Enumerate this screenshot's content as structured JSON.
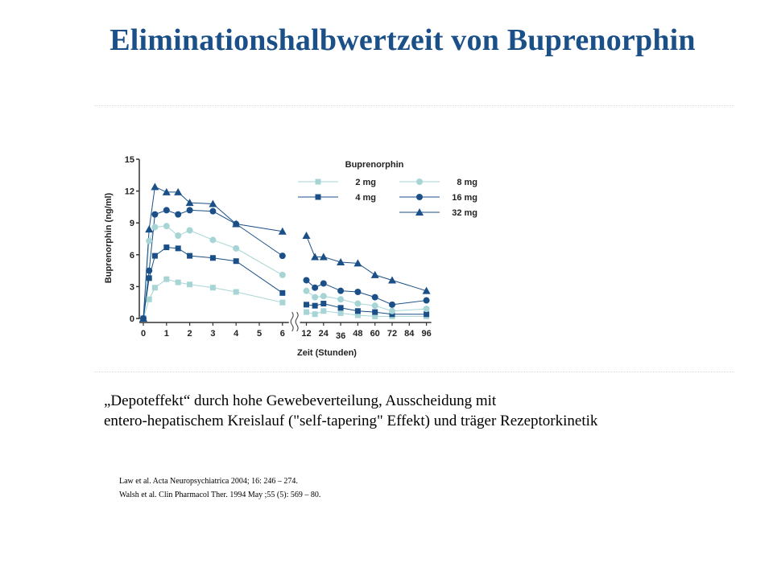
{
  "slide": {
    "title": "Eliminationshalbwertzeit von Buprenorphin",
    "caption_line1": "„Depoteffekt“ durch hohe Gewebeverteilung, Ausscheidung mit",
    "caption_line2": "entero-hepatischem Kreislauf (\"self-tapering\" Effekt) und träger Rezeptorkinetik",
    "references": [
      "Law et al. Acta Neuropsychiatrica 2004; 16: 246 – 274.",
      "Walsh et al. Clin Pharmacol Ther. 1994 May ;55 (5): 569 – 80."
    ]
  },
  "chart_data": {
    "type": "line",
    "title": "",
    "xlabel": "Zeit (Stunden)",
    "ylabel": "Buprenorphin (ng/ml)",
    "legend_title": "Buprenorphin",
    "legend_position": "top-right",
    "ylim": [
      0,
      15
    ],
    "yticks": [
      0,
      3,
      6,
      9,
      12,
      15
    ],
    "xticks_early": [
      0,
      1,
      2,
      3,
      4,
      5,
      6
    ],
    "xticks_late": [
      12,
      24,
      36,
      48,
      60,
      72,
      84,
      96
    ],
    "x_axis_break": true,
    "grid": false,
    "colors": {
      "light": "#a7d5d5",
      "dark": "#1a4f87",
      "axis": "#333333"
    },
    "series": [
      {
        "name": "2 mg",
        "marker": "square",
        "color": "light",
        "early": [
          [
            0,
            0
          ],
          [
            0.25,
            1.8
          ],
          [
            0.5,
            2.9
          ],
          [
            1,
            3.7
          ],
          [
            1.5,
            3.4
          ],
          [
            2,
            3.2
          ],
          [
            3,
            2.9
          ],
          [
            4,
            2.5
          ],
          [
            6,
            1.5
          ]
        ],
        "late": [
          [
            12,
            0.6
          ],
          [
            18,
            0.4
          ],
          [
            24,
            0.7
          ],
          [
            36,
            0.5
          ],
          [
            48,
            0.3
          ],
          [
            60,
            0.2
          ],
          [
            72,
            0.2
          ],
          [
            96,
            0.2
          ]
        ]
      },
      {
        "name": "4 mg",
        "marker": "square",
        "color": "dark",
        "early": [
          [
            0,
            0
          ],
          [
            0.25,
            3.8
          ],
          [
            0.5,
            5.9
          ],
          [
            1,
            6.7
          ],
          [
            1.5,
            6.6
          ],
          [
            2,
            5.9
          ],
          [
            3,
            5.7
          ],
          [
            4,
            5.4
          ],
          [
            6,
            2.4
          ]
        ],
        "late": [
          [
            12,
            1.3
          ],
          [
            18,
            1.2
          ],
          [
            24,
            1.4
          ],
          [
            36,
            1.0
          ],
          [
            48,
            0.7
          ],
          [
            60,
            0.6
          ],
          [
            72,
            0.4
          ],
          [
            96,
            0.4
          ]
        ]
      },
      {
        "name": "8 mg",
        "marker": "circle",
        "color": "light",
        "early": [
          [
            0,
            0
          ],
          [
            0.25,
            7.3
          ],
          [
            0.5,
            8.6
          ],
          [
            1,
            8.7
          ],
          [
            1.5,
            7.8
          ],
          [
            2,
            8.3
          ],
          [
            3,
            7.4
          ],
          [
            4,
            6.6
          ],
          [
            6,
            4.1
          ]
        ],
        "late": [
          [
            12,
            2.6
          ],
          [
            18,
            2.0
          ],
          [
            24,
            2.1
          ],
          [
            36,
            1.8
          ],
          [
            48,
            1.4
          ],
          [
            60,
            1.2
          ],
          [
            72,
            0.7
          ],
          [
            96,
            0.9
          ]
        ]
      },
      {
        "name": "16 mg",
        "marker": "circle",
        "color": "dark",
        "early": [
          [
            0,
            0
          ],
          [
            0.25,
            4.5
          ],
          [
            0.5,
            9.8
          ],
          [
            1,
            10.2
          ],
          [
            1.5,
            9.8
          ],
          [
            2,
            10.2
          ],
          [
            3,
            10.1
          ],
          [
            4,
            8.9
          ],
          [
            6,
            5.9
          ]
        ],
        "late": [
          [
            12,
            3.6
          ],
          [
            18,
            2.9
          ],
          [
            24,
            3.3
          ],
          [
            36,
            2.6
          ],
          [
            48,
            2.5
          ],
          [
            60,
            2.0
          ],
          [
            72,
            1.3
          ],
          [
            96,
            1.7
          ]
        ]
      },
      {
        "name": "32 mg",
        "marker": "triangle",
        "color": "dark",
        "early": [
          [
            0,
            0
          ],
          [
            0.25,
            8.4
          ],
          [
            0.5,
            12.4
          ],
          [
            1,
            11.9
          ],
          [
            1.5,
            11.9
          ],
          [
            2,
            10.9
          ],
          [
            3,
            10.8
          ],
          [
            4,
            8.9
          ],
          [
            6,
            8.2
          ]
        ],
        "late": [
          [
            12,
            7.8
          ],
          [
            18,
            5.8
          ],
          [
            24,
            5.8
          ],
          [
            36,
            5.3
          ],
          [
            48,
            5.2
          ],
          [
            60,
            4.1
          ],
          [
            72,
            3.6
          ],
          [
            96,
            2.6
          ]
        ]
      }
    ]
  }
}
